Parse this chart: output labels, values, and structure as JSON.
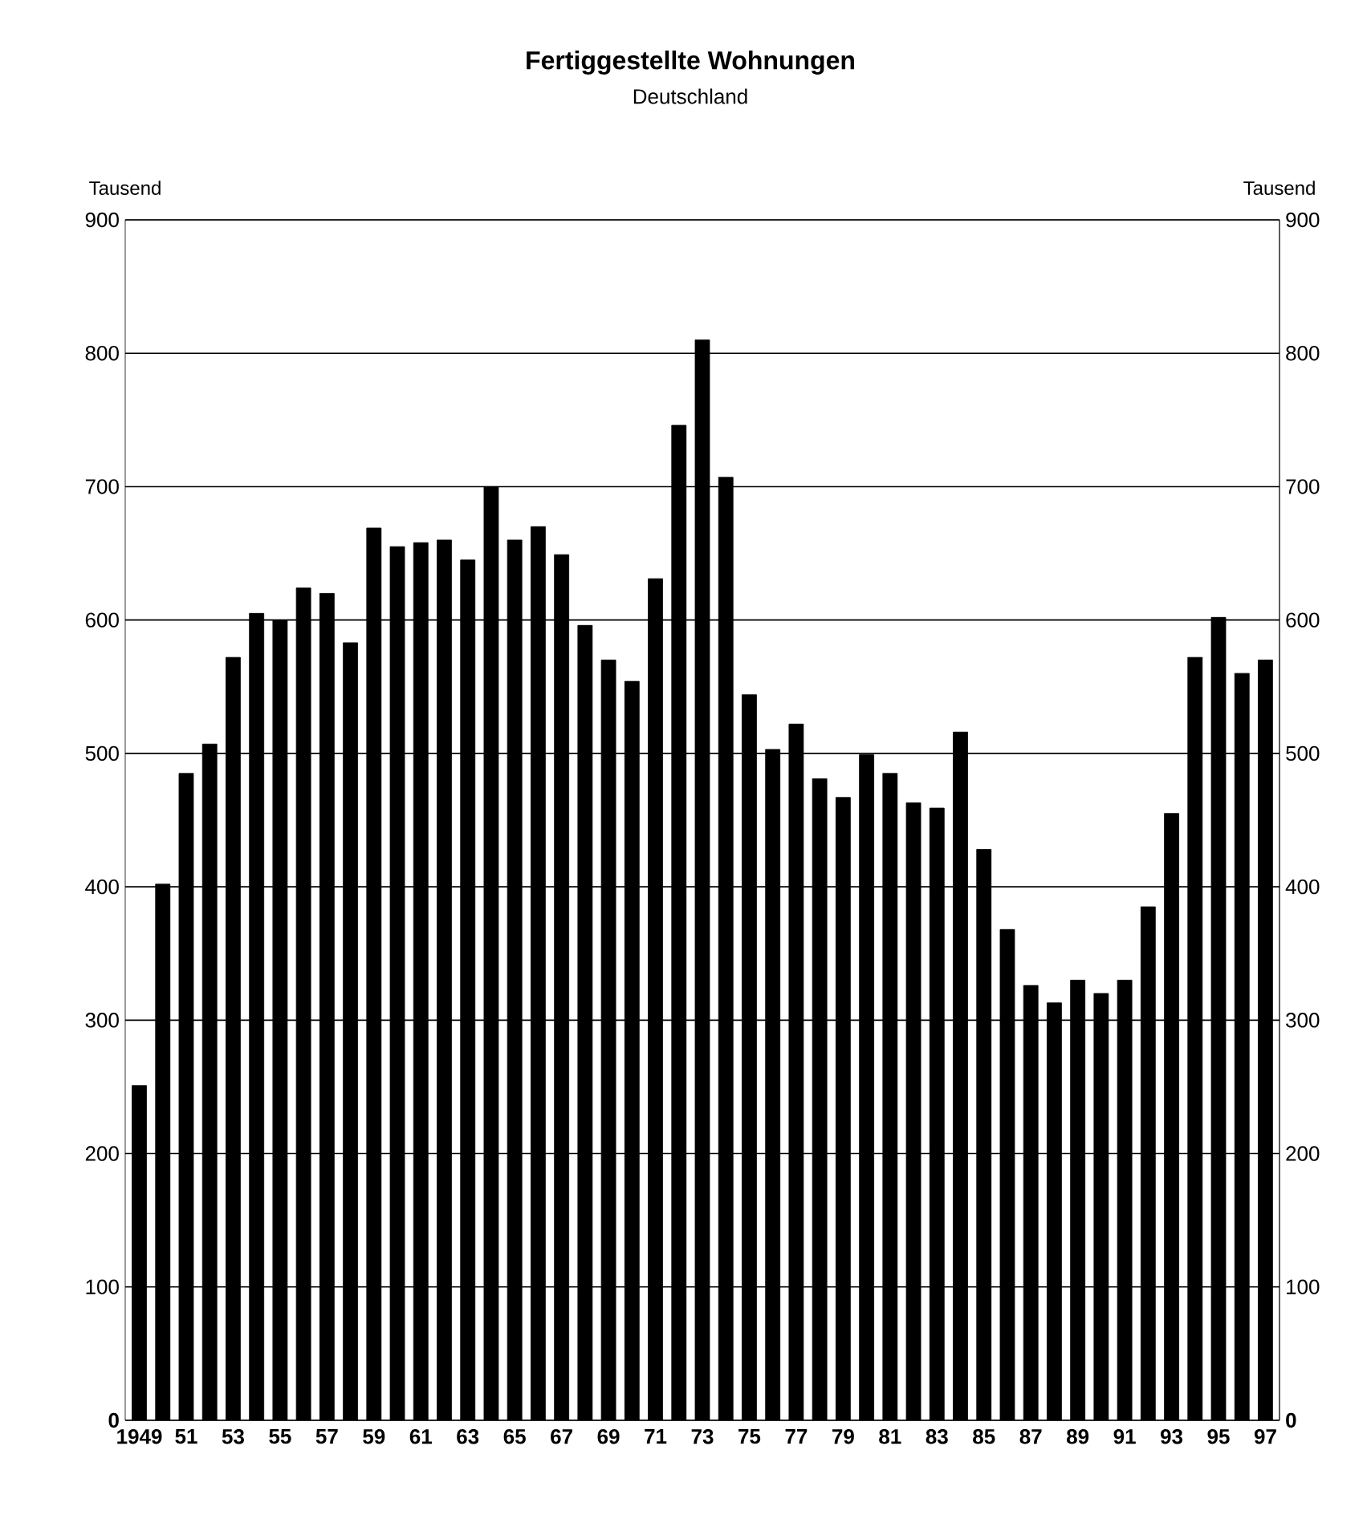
{
  "chart_data": {
    "type": "bar",
    "title": "Fertiggestellte Wohnungen",
    "subtitle": "Deutschland",
    "ylabel": "Tausend",
    "y2label": "Tausend",
    "categories": [
      "1949",
      null,
      "51",
      null,
      "53",
      null,
      "55",
      null,
      "57",
      null,
      "59",
      null,
      "61",
      null,
      "63",
      null,
      "65",
      null,
      "67",
      null,
      "69",
      null,
      "71",
      null,
      "73",
      null,
      "75",
      null,
      "77",
      null,
      "79",
      null,
      "81",
      null,
      "83",
      null,
      "85",
      null,
      "87",
      null,
      "89",
      null,
      "91",
      null,
      "93",
      null,
      "95",
      null,
      "97"
    ],
    "values": [
      251,
      402,
      485,
      507,
      572,
      605,
      600,
      624,
      620,
      583,
      669,
      655,
      658,
      660,
      645,
      700,
      660,
      670,
      649,
      596,
      570,
      554,
      631,
      746,
      810,
      707,
      544,
      503,
      522,
      481,
      467,
      499,
      485,
      463,
      459,
      516,
      428,
      368,
      326,
      313,
      330,
      320,
      330,
      385,
      455,
      572,
      602,
      560,
      570
    ],
    "color": "#000000",
    "ylim": [
      0,
      900
    ],
    "yticks": [
      0,
      100,
      200,
      300,
      400,
      500,
      600,
      700,
      800,
      900
    ],
    "y2lim": [
      0,
      900
    ],
    "y2ticks": [
      0,
      100,
      200,
      300,
      400,
      500,
      600,
      700,
      800,
      900
    ],
    "grid": "y"
  }
}
